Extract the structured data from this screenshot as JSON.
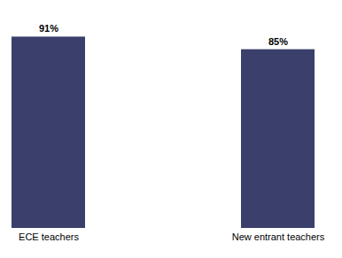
{
  "chart_data": {
    "type": "bar",
    "categories": [
      "ECE teachers",
      "New entrant teachers"
    ],
    "values": [
      91,
      85
    ],
    "value_labels": [
      "91%",
      "85%"
    ],
    "color": "#3b3f6b",
    "ylim": [
      0,
      100
    ],
    "data_labels": true,
    "tick_labels": "x"
  }
}
